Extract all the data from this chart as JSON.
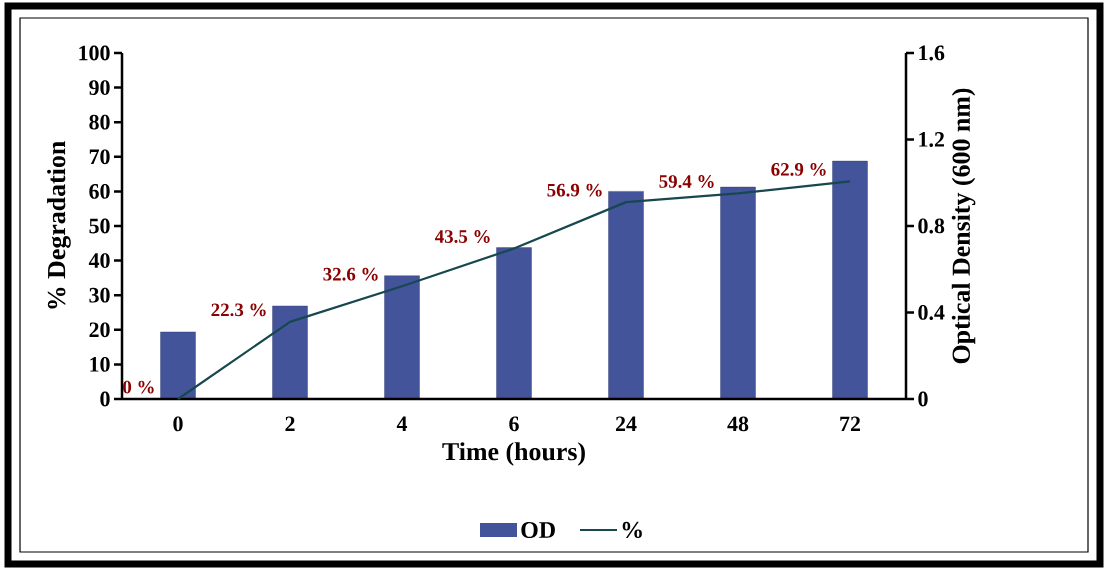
{
  "chart_data": {
    "type": "bar",
    "xlabel": "Time (hours)",
    "ylabel": "% Degradation",
    "y2label": "Optical Density (600 nm)",
    "categories": [
      "0",
      "2",
      "4",
      "6",
      "24",
      "48",
      "72"
    ],
    "series": [
      {
        "name": "OD",
        "axis": "y2",
        "color": "#44549a",
        "values": [
          0.31,
          0.43,
          0.57,
          0.7,
          0.96,
          0.98,
          1.1
        ]
      },
      {
        "name": "%",
        "type": "line",
        "color": "#17474f",
        "values": [
          0,
          22.3,
          32.6,
          43.5,
          56.9,
          59.4,
          62.9
        ],
        "value_labels": [
          "0 %",
          "22.3 %",
          "32.6 %",
          "43.5 %",
          "56.9 %",
          "59.4 %",
          "62.9 %"
        ]
      }
    ],
    "ylim": [
      0,
      100
    ],
    "yticks": [
      0,
      10,
      20,
      30,
      40,
      50,
      60,
      70,
      80,
      90,
      100
    ],
    "y2lim": [
      0,
      1.6
    ],
    "y2ticks": [
      0,
      0.4,
      0.8,
      1.2,
      1.6
    ],
    "legend": "bottom",
    "grid": false,
    "marker": "none",
    "line_style": "solid"
  }
}
